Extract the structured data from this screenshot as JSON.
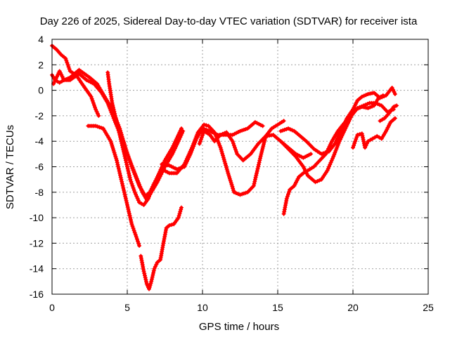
{
  "chart_data": {
    "type": "scatter",
    "title": "Day 226 of 2025, Sidereal Day-to-day VTEC variation (SDTVAR) for receiver ista",
    "xlabel": "GPS time / hours",
    "ylabel": "SDTVAR / TECUs",
    "xlim": [
      0,
      25
    ],
    "ylim": [
      -16,
      4
    ],
    "xticks": [
      0,
      5,
      10,
      15,
      20,
      25
    ],
    "yticks": [
      4,
      2,
      0,
      -2,
      -4,
      -6,
      -8,
      -10,
      -12,
      -14,
      -16
    ],
    "grid": true,
    "marker_color": "#ff0000",
    "marker": "plus",
    "series": [
      {
        "values": [
          [
            0,
            1.2
          ],
          [
            0.2,
            0.8
          ],
          [
            0.5,
            0.6
          ],
          [
            0.8,
            0.8
          ],
          [
            1.2,
            1.0
          ],
          [
            1.8,
            1.6
          ],
          [
            2.5,
            1.0
          ],
          [
            3.0,
            0.5
          ],
          [
            3.5,
            -0.5
          ],
          [
            4.0,
            -1.5
          ],
          [
            4.5,
            -3.0
          ],
          [
            5.0,
            -5.0
          ],
          [
            5.5,
            -6.5
          ],
          [
            6.0,
            -8.0
          ],
          [
            6.3,
            -8.6
          ],
          [
            6.6,
            -8.0
          ],
          [
            7.0,
            -7.2
          ],
          [
            7.5,
            -6.0
          ],
          [
            8.0,
            -5.0
          ],
          [
            8.4,
            -4.0
          ],
          [
            8.7,
            -3.2
          ]
        ]
      },
      {
        "values": [
          [
            0,
            3.5
          ],
          [
            0.3,
            3.2
          ],
          [
            0.6,
            2.8
          ],
          [
            0.9,
            2.5
          ],
          [
            1.2,
            1.5
          ],
          [
            1.6,
            1.2
          ],
          [
            2.0,
            0.5
          ],
          [
            2.3,
            0.0
          ],
          [
            2.6,
            -0.5
          ],
          [
            2.9,
            -1.5
          ],
          [
            3.1,
            -2.0
          ]
        ]
      },
      {
        "values": [
          [
            0.1,
            0.5
          ],
          [
            0.5,
            1.5
          ],
          [
            0.8,
            0.8
          ],
          [
            1.2,
            0.8
          ],
          [
            1.8,
            1.3
          ],
          [
            2.3,
            0.8
          ],
          [
            2.8,
            0.5
          ],
          [
            3.3,
            -0.2
          ],
          [
            3.7,
            -1.0
          ],
          [
            4.2,
            -2.5
          ],
          [
            4.8,
            -4.2
          ],
          [
            5.3,
            -6.0
          ],
          [
            5.8,
            -7.5
          ],
          [
            6.2,
            -8.3
          ],
          [
            6.5,
            -8.0
          ],
          [
            7.0,
            -6.8
          ],
          [
            7.5,
            -5.5
          ],
          [
            8.0,
            -4.5
          ],
          [
            8.6,
            -3.0
          ]
        ]
      },
      {
        "values": [
          [
            3.7,
            1.4
          ],
          [
            3.8,
            0.5
          ],
          [
            4.0,
            -1.0
          ],
          [
            4.3,
            -2.5
          ],
          [
            4.6,
            -4.0
          ],
          [
            4.9,
            -5.5
          ],
          [
            5.2,
            -7.0
          ],
          [
            5.5,
            -8.0
          ],
          [
            5.8,
            -8.8
          ],
          [
            6.1,
            -9.0
          ],
          [
            6.4,
            -8.5
          ],
          [
            6.8,
            -7.3
          ]
        ]
      },
      {
        "values": [
          [
            2.4,
            -2.8
          ],
          [
            2.9,
            -2.8
          ],
          [
            3.4,
            -3.0
          ],
          [
            3.9,
            -4.0
          ],
          [
            4.3,
            -5.5
          ],
          [
            4.7,
            -7.5
          ],
          [
            5.0,
            -9.0
          ],
          [
            5.3,
            -10.5
          ],
          [
            5.6,
            -11.5
          ],
          [
            5.8,
            -12.2
          ]
        ]
      },
      {
        "values": [
          [
            5.9,
            -13.0
          ],
          [
            6.1,
            -14.2
          ],
          [
            6.3,
            -15.2
          ],
          [
            6.45,
            -15.6
          ],
          [
            6.6,
            -15.0
          ],
          [
            6.8,
            -14.0
          ],
          [
            7.0,
            -13.5
          ],
          [
            7.2,
            -13.3
          ],
          [
            7.4,
            -12.0
          ],
          [
            7.6,
            -10.8
          ],
          [
            7.8,
            -10.6
          ],
          [
            8.1,
            -10.5
          ],
          [
            8.4,
            -10.0
          ],
          [
            8.6,
            -9.2
          ]
        ]
      },
      {
        "values": [
          [
            7.3,
            -5.8
          ],
          [
            7.8,
            -5.9
          ],
          [
            8.3,
            -6.2
          ],
          [
            8.8,
            -6.0
          ],
          [
            9.2,
            -5.0
          ],
          [
            9.6,
            -3.8
          ],
          [
            10.0,
            -3.0
          ],
          [
            10.5,
            -3.2
          ],
          [
            11.0,
            -3.5
          ],
          [
            11.5,
            -3.5
          ],
          [
            12.0,
            -3.5
          ],
          [
            12.5,
            -3.2
          ],
          [
            13.0,
            -3.0
          ],
          [
            13.5,
            -2.5
          ],
          [
            14.0,
            -2.8
          ]
        ]
      },
      {
        "values": [
          [
            7.3,
            -6.2
          ],
          [
            7.8,
            -6.5
          ],
          [
            8.3,
            -6.5
          ],
          [
            8.8,
            -5.8
          ],
          [
            9.3,
            -4.5
          ],
          [
            9.7,
            -3.3
          ],
          [
            10.1,
            -2.7
          ],
          [
            10.4,
            -2.8
          ],
          [
            10.8,
            -3.3
          ],
          [
            11.2,
            -4.5
          ],
          [
            11.7,
            -6.5
          ],
          [
            12.1,
            -8.0
          ],
          [
            12.5,
            -8.2
          ],
          [
            13.0,
            -8.0
          ],
          [
            13.4,
            -7.5
          ],
          [
            13.6,
            -6.5
          ],
          [
            13.9,
            -5.0
          ],
          [
            14.2,
            -3.6
          ],
          [
            14.6,
            -3.0
          ],
          [
            15.0,
            -2.7
          ],
          [
            15.4,
            -2.4
          ]
        ]
      },
      {
        "values": [
          [
            9.8,
            -4.2
          ],
          [
            10.1,
            -3.2
          ],
          [
            10.5,
            -3.5
          ],
          [
            10.8,
            -4.0
          ],
          [
            11.2,
            -3.5
          ],
          [
            11.6,
            -3.3
          ],
          [
            12.0,
            -4.0
          ],
          [
            12.3,
            -5.0
          ],
          [
            12.7,
            -5.5
          ],
          [
            13.2,
            -5.0
          ],
          [
            13.7,
            -4.2
          ],
          [
            14.2,
            -3.6
          ],
          [
            14.7,
            -3.5
          ],
          [
            15.2,
            -4.0
          ],
          [
            15.7,
            -4.5
          ],
          [
            16.2,
            -5.0
          ],
          [
            16.7,
            -5.3
          ],
          [
            17.2,
            -5.0
          ]
        ]
      },
      {
        "values": [
          [
            15.2,
            -3.2
          ],
          [
            15.7,
            -3.0
          ],
          [
            16.1,
            -3.2
          ],
          [
            16.5,
            -3.6
          ],
          [
            16.9,
            -4.0
          ],
          [
            17.4,
            -4.6
          ],
          [
            17.9,
            -5.0
          ],
          [
            18.4,
            -4.8
          ],
          [
            18.8,
            -4.2
          ],
          [
            19.2,
            -3.2
          ],
          [
            19.6,
            -2.2
          ],
          [
            20.0,
            -1.5
          ],
          [
            20.3,
            -0.8
          ],
          [
            20.6,
            -0.5
          ],
          [
            21.0,
            -0.3
          ],
          [
            21.4,
            -0.2
          ],
          [
            21.8,
            -0.6
          ],
          [
            22.2,
            -0.4
          ],
          [
            22.6,
            0.2
          ],
          [
            22.8,
            -0.3
          ]
        ]
      },
      {
        "values": [
          [
            15.2,
            -4.0
          ],
          [
            15.7,
            -4.6
          ],
          [
            16.2,
            -5.2
          ],
          [
            16.7,
            -6.0
          ],
          [
            17.0,
            -6.7
          ],
          [
            17.5,
            -7.2
          ],
          [
            17.9,
            -7.0
          ],
          [
            18.3,
            -6.3
          ],
          [
            18.7,
            -5.2
          ],
          [
            19.1,
            -4.0
          ],
          [
            19.5,
            -3.0
          ],
          [
            19.9,
            -2.0
          ],
          [
            20.3,
            -1.4
          ],
          [
            20.7,
            -1.2
          ],
          [
            21.1,
            -1.0
          ],
          [
            21.5,
            -1.0
          ],
          [
            21.9,
            -1.2
          ],
          [
            22.3,
            -1.7
          ],
          [
            22.7,
            -1.5
          ]
        ]
      },
      {
        "values": [
          [
            15.4,
            -9.7
          ],
          [
            15.6,
            -8.5
          ],
          [
            15.8,
            -7.8
          ],
          [
            16.1,
            -7.5
          ],
          [
            16.4,
            -6.8
          ],
          [
            16.7,
            -6.5
          ],
          [
            17.0,
            -6.3
          ],
          [
            17.4,
            -6.0
          ],
          [
            17.8,
            -5.5
          ],
          [
            18.2,
            -5.0
          ],
          [
            18.6,
            -4.0
          ],
          [
            19.0,
            -3.2
          ],
          [
            19.4,
            -2.6
          ],
          [
            19.8,
            -2.0
          ],
          [
            20.2,
            -1.5
          ],
          [
            20.6,
            -1.3
          ],
          [
            21.0,
            -1.4
          ],
          [
            21.4,
            -1.2
          ],
          [
            21.7,
            -0.6
          ],
          [
            22.0,
            -0.4
          ]
        ]
      },
      {
        "values": [
          [
            20.0,
            -4.5
          ],
          [
            20.3,
            -3.5
          ],
          [
            20.6,
            -3.4
          ],
          [
            20.8,
            -4.5
          ],
          [
            21.0,
            -4.0
          ],
          [
            21.3,
            -3.8
          ],
          [
            21.6,
            -3.6
          ],
          [
            21.9,
            -3.8
          ],
          [
            22.2,
            -3.2
          ],
          [
            22.5,
            -2.5
          ],
          [
            22.8,
            -2.2
          ]
        ]
      },
      {
        "values": [
          [
            21.8,
            -2.4
          ],
          [
            22.1,
            -2.2
          ],
          [
            22.4,
            -1.8
          ],
          [
            22.7,
            -1.3
          ],
          [
            22.9,
            -1.2
          ]
        ]
      }
    ]
  }
}
